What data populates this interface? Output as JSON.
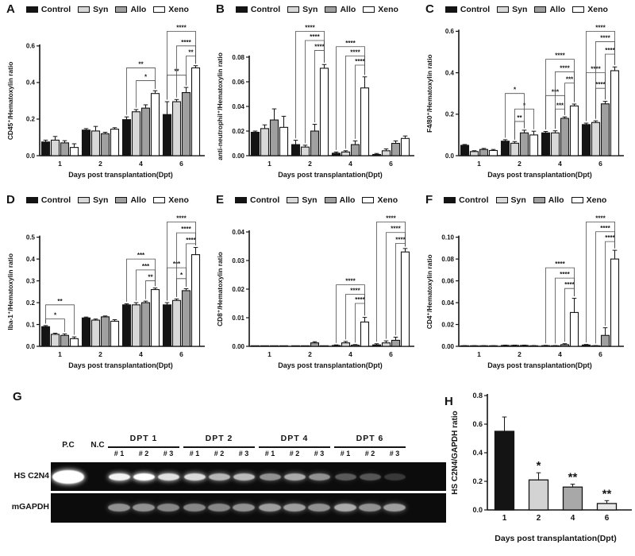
{
  "legend": {
    "items": [
      {
        "label": "Control",
        "color": "#141414"
      },
      {
        "label": "Syn",
        "color": "#d8d8d8"
      },
      {
        "label": "Allo",
        "color": "#a0a0a0"
      },
      {
        "label": "Xeno",
        "color": "#ffffff"
      }
    ]
  },
  "chart_data": [
    {
      "panel": "A",
      "type": "bar",
      "xlabel": "Days post transplantation(Dpt)",
      "ylabel": "CD45⁺/Hematoxylin ratio",
      "categories": [
        "1",
        "2",
        "4",
        "6"
      ],
      "ylim": [
        0,
        0.6
      ],
      "yticks": [
        0,
        0.2,
        0.4,
        0.6
      ],
      "ytick_labels": [
        "0.0",
        "0.2",
        "0.4",
        "0.6"
      ],
      "grid": false,
      "legend_position": "top",
      "series": [
        {
          "name": "Control",
          "color": "#141414",
          "values": [
            0.075,
            0.14,
            0.197,
            0.225
          ],
          "errors": [
            0.01,
            0.008,
            0.015,
            0.07
          ]
        },
        {
          "name": "Syn",
          "color": "#d8d8d8",
          "values": [
            0.085,
            0.135,
            0.24,
            0.295
          ],
          "errors": [
            0.02,
            0.025,
            0.012,
            0.012
          ]
        },
        {
          "name": "Allo",
          "color": "#a0a0a0",
          "values": [
            0.07,
            0.12,
            0.26,
            0.345
          ],
          "errors": [
            0.012,
            0.008,
            0.018,
            0.028
          ]
        },
        {
          "name": "Xeno",
          "color": "#ffffff",
          "values": [
            0.045,
            0.145,
            0.34,
            0.48
          ],
          "errors": [
            0.02,
            0.008,
            0.015,
            0.012
          ]
        }
      ],
      "significance": [
        {
          "day": 2,
          "from": 0,
          "to": 3,
          "stars": "**",
          "y": 0.48
        },
        {
          "day": 2,
          "from": 1,
          "to": 3,
          "stars": "*",
          "y": 0.41
        },
        {
          "day": 3,
          "from": 0,
          "to": 2,
          "stars": "**",
          "y": 0.44
        },
        {
          "day": 3,
          "from": 2,
          "to": 3,
          "stars": "**",
          "y": 0.545
        },
        {
          "day": 3,
          "from": 1,
          "to": 3,
          "stars": "****",
          "y": 0.6
        },
        {
          "day": 3,
          "from": 0,
          "to": 3,
          "stars": "****",
          "y": 0.68
        }
      ]
    },
    {
      "panel": "B",
      "type": "bar",
      "xlabel": "Days post transplantation(Dpt)",
      "ylabel": "anti-neutrophil⁺/Hematoxylin ratio",
      "categories": [
        "1",
        "2",
        "4",
        "6"
      ],
      "ylim": [
        0,
        0.08
      ],
      "yticks": [
        0,
        0.02,
        0.04,
        0.06,
        0.08
      ],
      "ytick_labels": [
        "0.00",
        "0.02",
        "0.04",
        "0.06",
        "0.08"
      ],
      "grid": false,
      "legend_position": "top",
      "series": [
        {
          "name": "Control",
          "color": "#141414",
          "values": [
            0.019,
            0.009,
            0.002,
            0.001
          ],
          "errors": [
            0.001,
            0.0035,
            0.001,
            0.0008
          ]
        },
        {
          "name": "Syn",
          "color": "#d8d8d8",
          "values": [
            0.022,
            0.007,
            0.003,
            0.004
          ],
          "errors": [
            0.003,
            0.0015,
            0.001,
            0.0015
          ]
        },
        {
          "name": "Allo",
          "color": "#a0a0a0",
          "values": [
            0.029,
            0.02,
            0.009,
            0.01
          ],
          "errors": [
            0.009,
            0.0055,
            0.003,
            0.002
          ]
        },
        {
          "name": "Xeno",
          "color": "#ffffff",
          "values": [
            0.023,
            0.071,
            0.055,
            0.014
          ],
          "errors": [
            0.009,
            0.003,
            0.009,
            0.002
          ]
        }
      ],
      "significance": [
        {
          "day": 1,
          "from": 2,
          "to": 3,
          "stars": "****",
          "y": 0.0855
        },
        {
          "day": 1,
          "from": 1,
          "to": 3,
          "stars": "****",
          "y": 0.0935
        },
        {
          "day": 1,
          "from": 0,
          "to": 3,
          "stars": "****",
          "y": 0.101
        },
        {
          "day": 2,
          "from": 2,
          "to": 3,
          "stars": "****",
          "y": 0.0735
        },
        {
          "day": 2,
          "from": 1,
          "to": 3,
          "stars": "****",
          "y": 0.081
        },
        {
          "day": 2,
          "from": 0,
          "to": 3,
          "stars": "****",
          "y": 0.0885
        }
      ]
    },
    {
      "panel": "C",
      "type": "bar",
      "xlabel": "Days post transplantation(Dpt)",
      "ylabel": "F4/80⁺/Hematoxylin ratio",
      "categories": [
        "1",
        "2",
        "4",
        "6"
      ],
      "ylim": [
        0,
        0.6
      ],
      "yticks": [
        0,
        0.2,
        0.4,
        0.6
      ],
      "ytick_labels": [
        "0.0",
        "0.2",
        "0.4",
        "0.6"
      ],
      "grid": false,
      "legend_position": "top",
      "series": [
        {
          "name": "Control",
          "color": "#141414",
          "values": [
            0.05,
            0.07,
            0.11,
            0.15
          ],
          "errors": [
            0.004,
            0.007,
            0.007,
            0.007
          ]
        },
        {
          "name": "Syn",
          "color": "#d8d8d8",
          "values": [
            0.02,
            0.06,
            0.11,
            0.16
          ],
          "errors": [
            0.004,
            0.008,
            0.01,
            0.008
          ]
        },
        {
          "name": "Allo",
          "color": "#a0a0a0",
          "values": [
            0.03,
            0.11,
            0.18,
            0.25
          ],
          "errors": [
            0.005,
            0.013,
            0.007,
            0.012
          ]
        },
        {
          "name": "Xeno",
          "color": "#ffffff",
          "values": [
            0.025,
            0.1,
            0.24,
            0.41
          ],
          "errors": [
            0.005,
            0.018,
            0.009,
            0.018
          ]
        }
      ],
      "significance": [
        {
          "day": 1,
          "from": 1,
          "to": 2,
          "stars": "**",
          "y": 0.165
        },
        {
          "day": 1,
          "from": 1,
          "to": 3,
          "stars": "*",
          "y": 0.225
        },
        {
          "day": 1,
          "from": 0,
          "to": 2,
          "stars": "*",
          "y": 0.3
        },
        {
          "day": 2,
          "from": 1,
          "to": 2,
          "stars": "***",
          "y": 0.225
        },
        {
          "day": 2,
          "from": 0,
          "to": 2,
          "stars": "***",
          "y": 0.29
        },
        {
          "day": 2,
          "from": 2,
          "to": 3,
          "stars": "***",
          "y": 0.35
        },
        {
          "day": 2,
          "from": 1,
          "to": 3,
          "stars": "****",
          "y": 0.405
        },
        {
          "day": 2,
          "from": 0,
          "to": 3,
          "stars": "****",
          "y": 0.465
        },
        {
          "day": 3,
          "from": 1,
          "to": 2,
          "stars": "****",
          "y": 0.325
        },
        {
          "day": 3,
          "from": 0,
          "to": 2,
          "stars": "****",
          "y": 0.4
        },
        {
          "day": 3,
          "from": 2,
          "to": 3,
          "stars": "****",
          "y": 0.49
        },
        {
          "day": 3,
          "from": 1,
          "to": 3,
          "stars": "****",
          "y": 0.55
        },
        {
          "day": 3,
          "from": 0,
          "to": 3,
          "stars": "****",
          "y": 0.6
        }
      ]
    },
    {
      "panel": "D",
      "type": "bar",
      "xlabel": "Days post transplantation(Dpt)",
      "ylabel": "Iba-1⁺/Hematoxylin ratio",
      "categories": [
        "1",
        "2",
        "4",
        "6"
      ],
      "ylim": [
        0,
        0.5
      ],
      "yticks": [
        0,
        0.1,
        0.2,
        0.3,
        0.4,
        0.5
      ],
      "ytick_labels": [
        "0.0",
        "0.1",
        "0.2",
        "0.3",
        "0.4",
        "0.5"
      ],
      "grid": false,
      "legend_position": "top",
      "series": [
        {
          "name": "Control",
          "color": "#141414",
          "values": [
            0.09,
            0.13,
            0.19,
            0.19
          ],
          "errors": [
            0.005,
            0.004,
            0.005,
            0.01
          ]
        },
        {
          "name": "Syn",
          "color": "#d8d8d8",
          "values": [
            0.055,
            0.12,
            0.19,
            0.21
          ],
          "errors": [
            0.005,
            0.005,
            0.01,
            0.007
          ]
        },
        {
          "name": "Allo",
          "color": "#a0a0a0",
          "values": [
            0.05,
            0.135,
            0.2,
            0.255
          ],
          "errors": [
            0.007,
            0.004,
            0.007,
            0.009
          ]
        },
        {
          "name": "Xeno",
          "color": "#ffffff",
          "values": [
            0.035,
            0.115,
            0.26,
            0.42
          ],
          "errors": [
            0.008,
            0.007,
            0.007,
            0.033
          ]
        }
      ],
      "significance": [
        {
          "day": 0,
          "from": 0,
          "to": 2,
          "stars": "*",
          "y": 0.125
        },
        {
          "day": 0,
          "from": 0,
          "to": 3,
          "stars": "**",
          "y": 0.19
        },
        {
          "day": 2,
          "from": 2,
          "to": 3,
          "stars": "**",
          "y": 0.3
        },
        {
          "day": 2,
          "from": 1,
          "to": 3,
          "stars": "***",
          "y": 0.35
        },
        {
          "day": 2,
          "from": 0,
          "to": 3,
          "stars": "***",
          "y": 0.4
        },
        {
          "day": 3,
          "from": 1,
          "to": 2,
          "stars": "*",
          "y": 0.31
        },
        {
          "day": 3,
          "from": 0,
          "to": 2,
          "stars": "***",
          "y": 0.36
        },
        {
          "day": 3,
          "from": 2,
          "to": 3,
          "stars": "****",
          "y": 0.47
        },
        {
          "day": 3,
          "from": 1,
          "to": 3,
          "stars": "****",
          "y": 0.52
        },
        {
          "day": 3,
          "from": 0,
          "to": 3,
          "stars": "****",
          "y": 0.57
        }
      ]
    },
    {
      "panel": "E",
      "type": "bar",
      "xlabel": "Days post transplantation(Dpt)",
      "ylabel": "CD8⁺/Hematoxylin ratio",
      "categories": [
        "1",
        "2",
        "4",
        "6"
      ],
      "ylim": [
        0,
        0.04
      ],
      "yticks": [
        0,
        0.01,
        0.02,
        0.03,
        0.04
      ],
      "ytick_labels": [
        "0.00",
        "0.01",
        "0.02",
        "0.03",
        "0.04"
      ],
      "grid": false,
      "legend_position": "top",
      "series": [
        {
          "name": "Control",
          "color": "#141414",
          "values": [
            0,
            0,
            0.0003,
            0.0005
          ],
          "errors": [
            0,
            0,
            0.0002,
            0.0004
          ]
        },
        {
          "name": "Syn",
          "color": "#d8d8d8",
          "values": [
            0,
            0,
            0.0012,
            0.0012
          ],
          "errors": [
            0,
            0,
            0.0005,
            0.0007
          ]
        },
        {
          "name": "Allo",
          "color": "#a0a0a0",
          "values": [
            0,
            0.0012,
            0.0004,
            0.0021
          ],
          "errors": [
            0,
            0.0004,
            0.0002,
            0.0011
          ]
        },
        {
          "name": "Xeno",
          "color": "#ffffff",
          "values": [
            0,
            0,
            0.0085,
            0.033
          ],
          "errors": [
            0,
            0,
            0.0016,
            0.0012
          ]
        }
      ],
      "significance": [
        {
          "day": 2,
          "from": 2,
          "to": 3,
          "stars": "****",
          "y": 0.015
        },
        {
          "day": 2,
          "from": 1,
          "to": 3,
          "stars": "****",
          "y": 0.0182
        },
        {
          "day": 2,
          "from": 0,
          "to": 3,
          "stars": "****",
          "y": 0.0215
        },
        {
          "day": 3,
          "from": 2,
          "to": 3,
          "stars": "****",
          "y": 0.036
        },
        {
          "day": 3,
          "from": 1,
          "to": 3,
          "stars": "****",
          "y": 0.0398
        },
        {
          "day": 3,
          "from": 0,
          "to": 3,
          "stars": "****",
          "y": 0.0435
        }
      ]
    },
    {
      "panel": "F",
      "type": "bar",
      "xlabel": "Days post transplantation(Dpt)",
      "ylabel": "CD4⁺/Hematoxylin ratio",
      "categories": [
        "1",
        "2",
        "4",
        "6"
      ],
      "ylim": [
        0,
        0.1
      ],
      "yticks": [
        0,
        0.02,
        0.04,
        0.06,
        0.08,
        0.1
      ],
      "ytick_labels": [
        "0.00",
        "0.02",
        "0.04",
        "0.06",
        "0.08",
        "0.10"
      ],
      "grid": false,
      "legend_position": "top",
      "series": [
        {
          "name": "Control",
          "color": "#141414",
          "values": [
            0.0004,
            0.0008,
            0.0006,
            0.0012
          ],
          "errors": [
            0.0002,
            0.0003,
            0.0003,
            0.0005
          ]
        },
        {
          "name": "Syn",
          "color": "#d8d8d8",
          "values": [
            0.0004,
            0.0008,
            0.0005,
            0.0005
          ],
          "errors": [
            0.0002,
            0.0003,
            0.0002,
            0.0002
          ]
        },
        {
          "name": "Allo",
          "color": "#a0a0a0",
          "values": [
            0.0004,
            0.0008,
            0.0015,
            0.01
          ],
          "errors": [
            0.0002,
            0.0003,
            0.0009,
            0.007
          ]
        },
        {
          "name": "Xeno",
          "color": "#ffffff",
          "values": [
            0.0004,
            0.0005,
            0.031,
            0.08
          ],
          "errors": [
            0.0002,
            0.0002,
            0.013,
            0.008
          ]
        }
      ],
      "significance": [
        {
          "day": 2,
          "from": 2,
          "to": 3,
          "stars": "****",
          "y": 0.053
        },
        {
          "day": 2,
          "from": 1,
          "to": 3,
          "stars": "****",
          "y": 0.0625
        },
        {
          "day": 2,
          "from": 0,
          "to": 3,
          "stars": "****",
          "y": 0.072
        },
        {
          "day": 3,
          "from": 2,
          "to": 3,
          "stars": "****",
          "y": 0.096
        },
        {
          "day": 3,
          "from": 1,
          "to": 3,
          "stars": "****",
          "y": 0.105
        },
        {
          "day": 3,
          "from": 0,
          "to": 3,
          "stars": "****",
          "y": 0.114
        }
      ]
    },
    {
      "panel": "H",
      "type": "bar",
      "xlabel": "Days post transplantation(Dpt)",
      "ylabel": "HS C2N4/GAPDH ratio",
      "categories": [
        "1",
        "2",
        "4",
        "6"
      ],
      "ylim": [
        0,
        0.8
      ],
      "yticks": [
        0,
        0.2,
        0.4,
        0.6,
        0.8
      ],
      "ytick_labels": [
        "0.0",
        "0.2",
        "0.4",
        "0.6",
        "0.8"
      ],
      "grid": false,
      "values": [
        0.55,
        0.21,
        0.16,
        0.045
      ],
      "errors": [
        0.1,
        0.05,
        0.02,
        0.02
      ],
      "bar_colors": [
        "#141414",
        "#d3d3d3",
        "#a8a8a8",
        "#e8e8e8"
      ],
      "stars": [
        "",
        "*",
        "**",
        "**"
      ]
    }
  ],
  "gel": {
    "panel_letter": "G",
    "pc_label": "P.C",
    "nc_label": "N.C",
    "row_labels": [
      "HS C2N4",
      "mGAPDH"
    ],
    "groups": [
      {
        "label": "DPT 1",
        "replicates": [
          "# 1",
          "# 2",
          "# 3"
        ]
      },
      {
        "label": "DPT 2",
        "replicates": [
          "# 1",
          "# 2",
          "# 3"
        ]
      },
      {
        "label": "DPT 4",
        "replicates": [
          "# 1",
          "# 2",
          "# 3"
        ]
      },
      {
        "label": "DPT 6",
        "replicates": [
          "# 1",
          "# 2",
          "# 3"
        ]
      }
    ],
    "bands": {
      "hs_c2n4": {
        "pc": 1.0,
        "nc": 0.0,
        "samples": [
          [
            0.95,
            1.0,
            0.88
          ],
          [
            0.85,
            0.7,
            0.72
          ],
          [
            0.55,
            0.65,
            0.55
          ],
          [
            0.32,
            0.3,
            0.18
          ]
        ]
      },
      "mgapdh": {
        "pc": 0.0,
        "nc": 0.0,
        "samples": [
          [
            0.55,
            0.55,
            0.5
          ],
          [
            0.5,
            0.5,
            0.55
          ],
          [
            0.6,
            0.6,
            0.55
          ],
          [
            0.65,
            0.55,
            0.6
          ]
        ]
      }
    }
  }
}
